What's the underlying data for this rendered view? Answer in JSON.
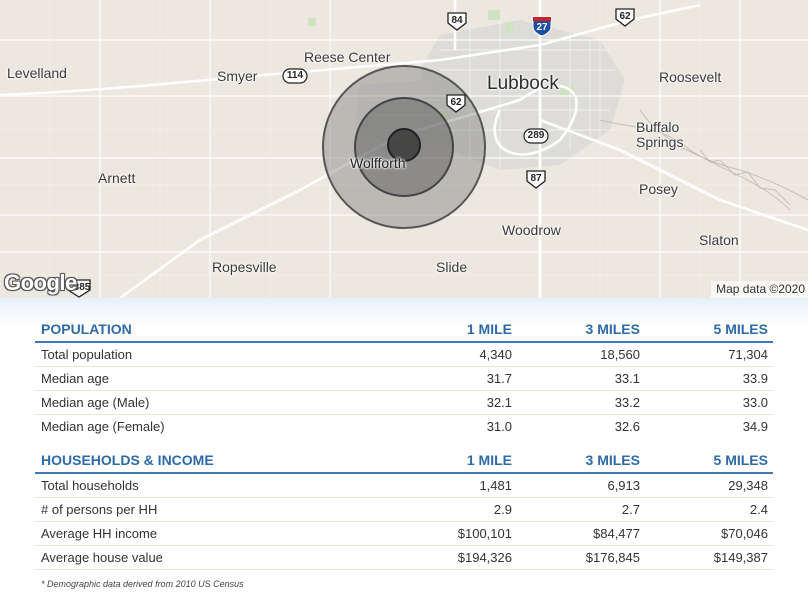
{
  "map": {
    "places": [
      {
        "id": "levelland",
        "name": "Levelland"
      },
      {
        "id": "smyer",
        "name": "Smyer"
      },
      {
        "id": "reese-center",
        "name": "Reese Center"
      },
      {
        "id": "lubbock",
        "name": "Lubbock"
      },
      {
        "id": "roosevelt",
        "name": "Roosevelt"
      },
      {
        "id": "buffalo-springs",
        "name": "Buffalo\nSprings"
      },
      {
        "id": "wolfforth",
        "name": "Wolfforth"
      },
      {
        "id": "arnett",
        "name": "Arnett"
      },
      {
        "id": "posey",
        "name": "Posey"
      },
      {
        "id": "woodrow",
        "name": "Woodrow"
      },
      {
        "id": "slaton",
        "name": "Slaton"
      },
      {
        "id": "ropesville",
        "name": "Ropesville"
      },
      {
        "id": "slide",
        "name": "Slide"
      }
    ],
    "route_shields": [
      {
        "id": "us-84",
        "number": "84",
        "type": "us"
      },
      {
        "id": "i-27",
        "number": "27",
        "type": "interstate"
      },
      {
        "id": "us-62-north",
        "number": "62",
        "type": "us"
      },
      {
        "id": "tx-114",
        "number": "114",
        "type": "state"
      },
      {
        "id": "us-62-mid",
        "number": "62",
        "type": "us"
      },
      {
        "id": "tx-289",
        "number": "289",
        "type": "state"
      },
      {
        "id": "us-87",
        "number": "87",
        "type": "us"
      },
      {
        "id": "us-385",
        "number": "385",
        "type": "us"
      }
    ],
    "radius_rings": [
      "1 mile",
      "3 miles",
      "5 miles"
    ],
    "logo": "Google",
    "attribution": "Map data ©2020",
    "colors": {
      "land": "#ece7df",
      "urban": "#dcdad6",
      "roads": "#ffffff",
      "ring_fill": "#666666"
    }
  },
  "population": {
    "header": "POPULATION",
    "cols": [
      "1 MILE",
      "3 MILES",
      "5 MILES"
    ],
    "rows": [
      {
        "label": "Total population",
        "v": [
          "4,340",
          "18,560",
          "71,304"
        ]
      },
      {
        "label": "Median age",
        "v": [
          "31.7",
          "33.1",
          "33.9"
        ]
      },
      {
        "label": "Median age (Male)",
        "v": [
          "32.1",
          "33.2",
          "33.0"
        ]
      },
      {
        "label": "Median age (Female)",
        "v": [
          "31.0",
          "32.6",
          "34.9"
        ]
      }
    ]
  },
  "households": {
    "header": "HOUSEHOLDS & INCOME",
    "cols": [
      "1 MILE",
      "3 MILES",
      "5 MILES"
    ],
    "rows": [
      {
        "label": "Total households",
        "v": [
          "1,481",
          "6,913",
          "29,348"
        ]
      },
      {
        "label": "# of persons per HH",
        "v": [
          "2.9",
          "2.7",
          "2.4"
        ]
      },
      {
        "label": "Average HH income",
        "v": [
          "$100,101",
          "$84,477",
          "$70,046"
        ]
      },
      {
        "label": "Average house value",
        "v": [
          "$194,326",
          "$176,845",
          "$149,387"
        ]
      }
    ]
  },
  "footnote": "* Demographic data derived from 2010 US Census",
  "accent_color": "#2f6aa8"
}
